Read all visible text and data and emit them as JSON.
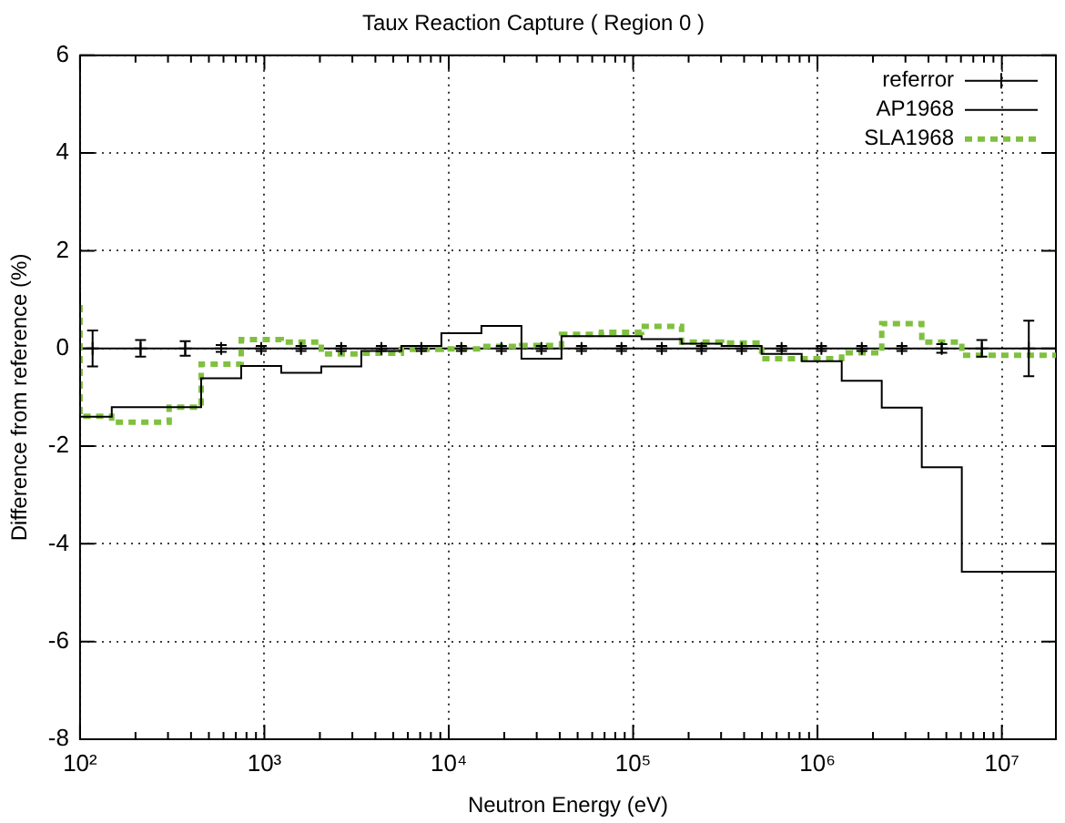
{
  "chart_data": {
    "type": "step",
    "title": "Taux Reaction Capture ( Region 0 )",
    "xlabel": "Neutron Energy (eV)",
    "ylabel": "Difference from reference (%)",
    "log": "x",
    "xlim": [
      100,
      19640000
    ],
    "ylim": [
      -8,
      6
    ],
    "xticks": [
      {
        "value": 100,
        "label": "10²"
      },
      {
        "value": 200,
        "label": null
      },
      {
        "value": 300,
        "label": null
      },
      {
        "value": 400,
        "label": null
      },
      {
        "value": 500,
        "label": null
      },
      {
        "value": 600,
        "label": null
      },
      {
        "value": 700,
        "label": null
      },
      {
        "value": 800,
        "label": null
      },
      {
        "value": 900,
        "label": null
      },
      {
        "value": 1000,
        "label": "10³"
      },
      {
        "value": 2000,
        "label": null
      },
      {
        "value": 3000,
        "label": null
      },
      {
        "value": 4000,
        "label": null
      },
      {
        "value": 5000,
        "label": null
      },
      {
        "value": 6000,
        "label": null
      },
      {
        "value": 7000,
        "label": null
      },
      {
        "value": 8000,
        "label": null
      },
      {
        "value": 9000,
        "label": null
      },
      {
        "value": 10000,
        "label": "10⁴"
      },
      {
        "value": 20000,
        "label": null
      },
      {
        "value": 30000,
        "label": null
      },
      {
        "value": 40000,
        "label": null
      },
      {
        "value": 50000,
        "label": null
      },
      {
        "value": 60000,
        "label": null
      },
      {
        "value": 70000,
        "label": null
      },
      {
        "value": 80000,
        "label": null
      },
      {
        "value": 90000,
        "label": null
      },
      {
        "value": 100000,
        "label": "10⁵"
      },
      {
        "value": 200000,
        "label": null
      },
      {
        "value": 300000,
        "label": null
      },
      {
        "value": 400000,
        "label": null
      },
      {
        "value": 500000,
        "label": null
      },
      {
        "value": 600000,
        "label": null
      },
      {
        "value": 700000,
        "label": null
      },
      {
        "value": 800000,
        "label": null
      },
      {
        "value": 900000,
        "label": null
      },
      {
        "value": 1000000,
        "label": "10⁶"
      },
      {
        "value": 2000000,
        "label": null
      },
      {
        "value": 3000000,
        "label": null
      },
      {
        "value": 4000000,
        "label": null
      },
      {
        "value": 5000000,
        "label": null
      },
      {
        "value": 6000000,
        "label": null
      },
      {
        "value": 7000000,
        "label": null
      },
      {
        "value": 8000000,
        "label": null
      },
      {
        "value": 9000000,
        "label": null
      },
      {
        "value": 10000000,
        "label": "10⁷"
      }
    ],
    "yticks": [
      -8,
      -6,
      -4,
      -2,
      0,
      2,
      4,
      6
    ],
    "grid": true,
    "legend": "top right",
    "ref_lines": [
      {
        "axis": "y",
        "value": 0,
        "color": "#000000"
      }
    ],
    "series": [
      {
        "name": "referror",
        "type": "scatter",
        "marker": "cross",
        "color": "#000000",
        "x": [
          117,
          213,
          372,
          583,
          961,
          1580,
          2610,
          4310,
          7100,
          11700,
          19300,
          31800,
          52500,
          86500,
          143000,
          235000,
          388000,
          639000,
          1050000,
          1740000,
          2870000,
          4720000,
          7790000,
          14000000
        ],
        "values": [
          0,
          0,
          0,
          0,
          0,
          0,
          0,
          0,
          0,
          0,
          0,
          0,
          0,
          0,
          0,
          0,
          0,
          0,
          0,
          0,
          0,
          0,
          0,
          0
        ],
        "errors": [
          0.37,
          0.17,
          0.15,
          0.07,
          0.05,
          0.05,
          0.05,
          0.05,
          0.05,
          0.05,
          0.05,
          0.05,
          0.05,
          0.05,
          0.05,
          0.05,
          0.05,
          0.05,
          0.05,
          0.05,
          0.05,
          0.09,
          0.17,
          0.57
        ]
      },
      {
        "name": "AP1968",
        "color": "#000000",
        "line_style": "solid",
        "x": [
          100,
          148.63,
          304.32,
          454,
          748.52,
          1234.1,
          2034.7,
          3354.6,
          5530.8,
          9118.8,
          15034,
          24788,
          40868,
          67379,
          111090,
          183160,
          301970,
          497870,
          820850,
          1353400,
          2231300,
          3678800,
          6065300,
          10000000,
          19640000
        ],
        "values": [
          1.15,
          -1.4,
          -1.2,
          -1.2,
          -0.61,
          -0.36,
          -0.5,
          -0.37,
          -0.05,
          0.05,
          0.31,
          0.46,
          -0.21,
          0.25,
          0.25,
          0.19,
          0.1,
          0.05,
          -0.11,
          -0.26,
          -0.66,
          -1.21,
          -2.43,
          -4.57,
          -4.57
        ]
      },
      {
        "name": "SLA1968",
        "color": "#80c040",
        "line_style": "dashed",
        "x": [
          100,
          148.63,
          304.32,
          454,
          748.52,
          1234.1,
          2034.7,
          3354.6,
          5530.8,
          9118.8,
          15034,
          24788,
          40868,
          67379,
          111090,
          183160,
          301970,
          497870,
          820850,
          1353400,
          2231300,
          3678800,
          6065300,
          10000000,
          19640000
        ],
        "values": [
          0.89,
          -1.39,
          -1.51,
          -1.2,
          -0.32,
          0.18,
          0.13,
          -0.11,
          -0.1,
          -0.02,
          -0.01,
          0.04,
          0.06,
          0.29,
          0.33,
          0.45,
          0.13,
          0.11,
          -0.21,
          -0.21,
          -0.09,
          0.51,
          0.13,
          -0.14,
          -0.14
        ]
      }
    ]
  }
}
